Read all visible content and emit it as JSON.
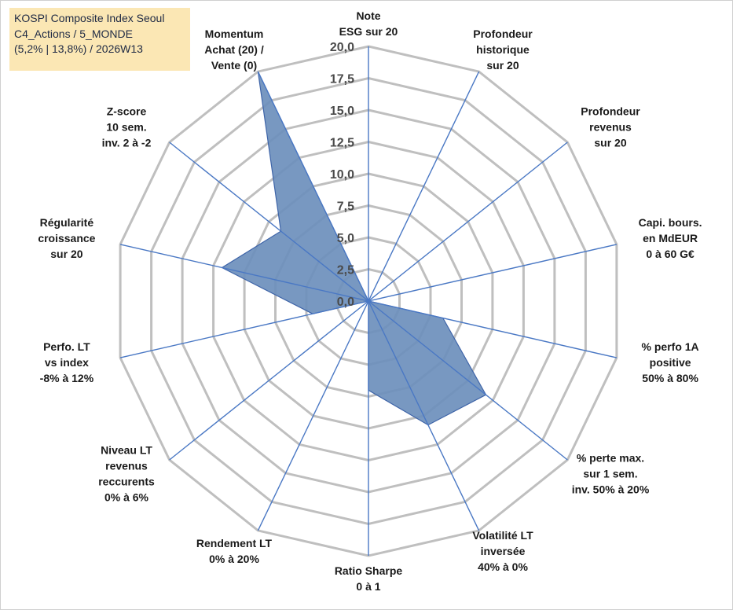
{
  "title_box": {
    "lines": [
      "KOSPI Composite Index Seoul",
      "C4_Actions / 5_MONDE",
      "(5,2% | 13,8%) / 2026W13"
    ]
  },
  "chart_data": {
    "type": "radar",
    "rmin": 0,
    "rmax": 20,
    "tick_labels": [
      "0,0",
      "2,5",
      "5,0",
      "7,5",
      "10,0",
      "12,5",
      "15,0",
      "17,5",
      "20,0"
    ],
    "ticks": [
      0,
      2.5,
      5,
      7.5,
      10,
      12.5,
      15,
      17.5,
      20
    ],
    "grid_rings": 8,
    "grid": true,
    "legend": "none",
    "axes": [
      [
        "Note",
        "ESG sur 20"
      ],
      [
        "Profondeur",
        "historique",
        "sur 20"
      ],
      [
        "Profondeur",
        "revenus",
        "sur 20"
      ],
      [
        "Capi. bours.",
        "en MdEUR",
        "0 à 60 G€"
      ],
      [
        "% perfo 1A",
        "positive",
        "50% à 80%"
      ],
      [
        "% perte max.",
        "sur 1 sem.",
        "inv. 50% à 20%"
      ],
      [
        "Volatilité LT",
        "inversée",
        "40% à 0%"
      ],
      [
        "Ratio Sharpe",
        "0 à 1"
      ],
      [
        "Rendement LT",
        "0% à 20%"
      ],
      [
        "Niveau LT",
        "revenus",
        "reccurents",
        "0% à 6%"
      ],
      [
        "Perfo. LT",
        "vs index",
        "-8% à 12%"
      ],
      [
        "Régularité",
        "croissance",
        "sur 20"
      ],
      [
        "Z-score",
        "10 sem.",
        "inv. 2 à -2"
      ],
      [
        "Momentum",
        "Achat (20) /",
        "Vente (0)"
      ]
    ],
    "series": [
      {
        "values": [
          0.0,
          0.0,
          0.0,
          0.0,
          6.0,
          11.8,
          10.8,
          7.0,
          0.0,
          0.0,
          4.5,
          11.8,
          8.8,
          20.0
        ],
        "color": "#6d8fbc"
      }
    ]
  }
}
